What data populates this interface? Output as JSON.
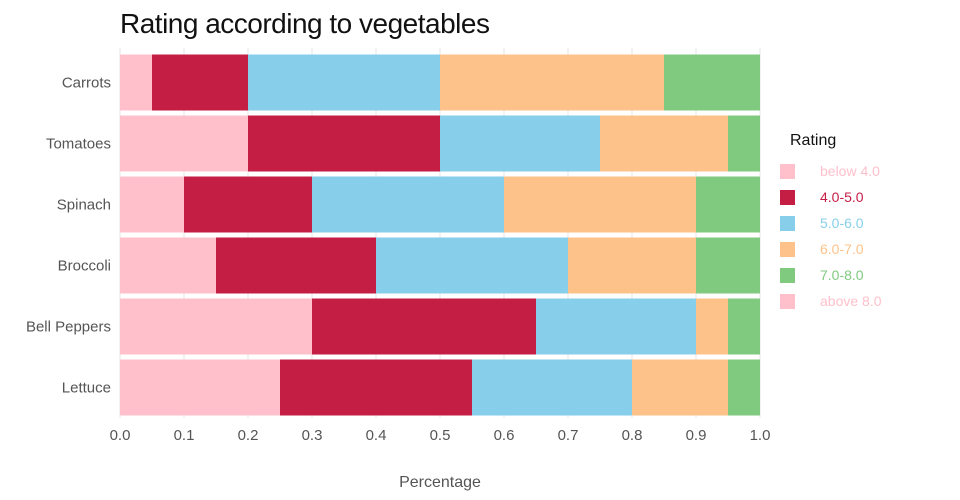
{
  "chart_data": {
    "type": "bar",
    "orientation": "horizontal",
    "stacked": true,
    "title": "Rating according to vegetables",
    "xlabel": "Percentage",
    "ylabel": "",
    "xlim": [
      0.0,
      1.0
    ],
    "xticks": [
      "0.0",
      "0.1",
      "0.2",
      "0.3",
      "0.4",
      "0.5",
      "0.6",
      "0.7",
      "0.8",
      "0.9",
      "1.0"
    ],
    "categories": [
      "Carrots",
      "Tomatoes",
      "Spinach",
      "Broccoli",
      "Bell Peppers",
      "Lettuce"
    ],
    "legend_title": "Rating",
    "legend_position": "right",
    "grid": true,
    "series": [
      {
        "name": "below 4.0",
        "color": "#ffc0cb",
        "values": [
          0.05,
          0.2,
          0.1,
          0.15,
          0.3,
          0.25
        ]
      },
      {
        "name": "4.0-5.0",
        "color": "#c41e45",
        "values": [
          0.15,
          0.3,
          0.2,
          0.25,
          0.35,
          0.3
        ]
      },
      {
        "name": "5.0-6.0",
        "color": "#87ceeb",
        "values": [
          0.3,
          0.25,
          0.3,
          0.3,
          0.25,
          0.25
        ]
      },
      {
        "name": "6.0-7.0",
        "color": "#fcc289",
        "values": [
          0.35,
          0.2,
          0.3,
          0.2,
          0.05,
          0.15
        ]
      },
      {
        "name": "7.0-8.0",
        "color": "#7fca7f",
        "values": [
          0.15,
          0.05,
          0.1,
          0.1,
          0.05,
          0.05
        ]
      },
      {
        "name": "above 8.0",
        "color": "#ffc0cb",
        "values": [
          0,
          0,
          0,
          0,
          0,
          0
        ]
      }
    ]
  }
}
